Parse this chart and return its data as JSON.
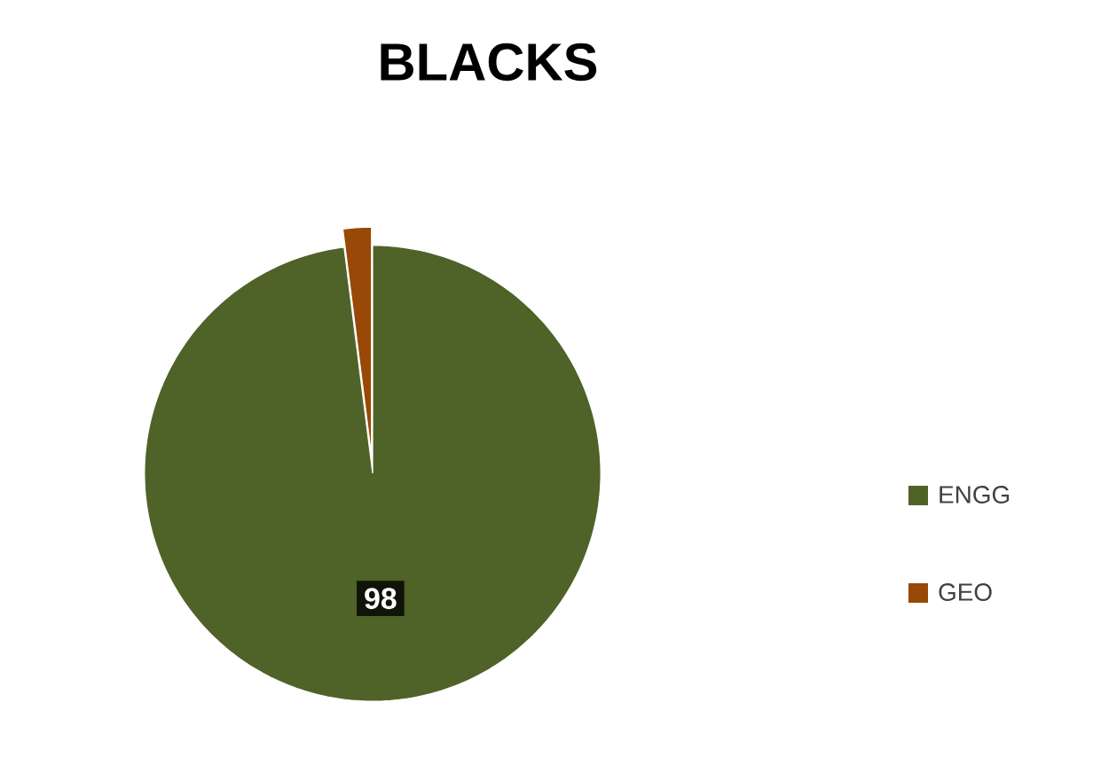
{
  "chart_data": {
    "type": "pie",
    "title": "BLACKS",
    "categories": [
      "ENGG",
      "GEO"
    ],
    "values": [
      98,
      2
    ],
    "colors": [
      "#4f6228",
      "#984807"
    ],
    "value_labels": [
      "98",
      null
    ],
    "legend": "right"
  }
}
